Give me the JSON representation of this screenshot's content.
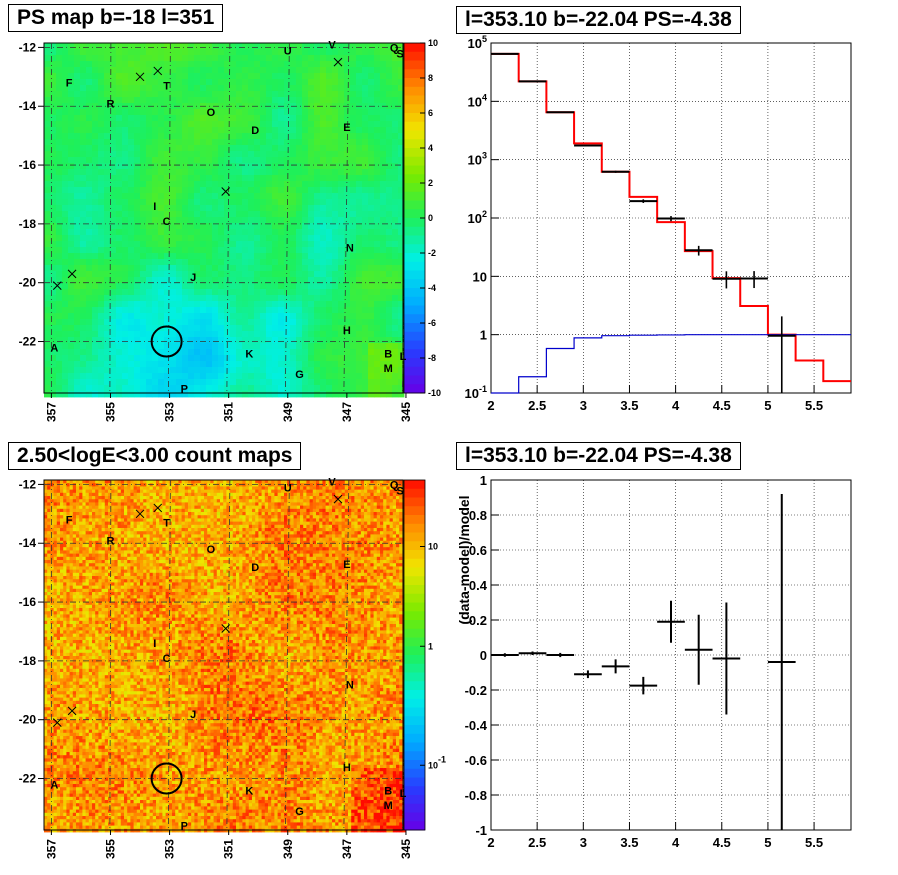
{
  "panels": {
    "tl_title": "PS map b=-18 l=351",
    "tr_title": "l=353.10 b=-22.04 PS=-4.38",
    "bl_title": "2.50<logE<3.00 count maps",
    "br_title": "l=353.10 b=-22.04 PS=-4.38"
  },
  "chart_data": [
    {
      "type": "heatmap",
      "title": "PS map b=-18 l=351",
      "x_ticks": [
        "357",
        "355",
        "353",
        "351",
        "349",
        "347",
        "345"
      ],
      "y_ticks": [
        "-12",
        "-14",
        "-16",
        "-18",
        "-20",
        "-22"
      ],
      "colorbar_ticks": [
        "10",
        "8",
        "6",
        "4",
        "2",
        "0",
        "-2",
        "-4",
        "-6",
        "-8",
        "-10"
      ],
      "colorbar_range": [
        -10,
        10
      ],
      "source_labels": [
        {
          "name": "A",
          "l": 356.9,
          "b": -22.2
        },
        {
          "name": "B",
          "l": 345.6,
          "b": -22.4
        },
        {
          "name": "C",
          "l": 353.1,
          "b": -17.9
        },
        {
          "name": "D",
          "l": 350.1,
          "b": -14.8
        },
        {
          "name": "E",
          "l": 347.0,
          "b": -14.7
        },
        {
          "name": "F",
          "l": 356.4,
          "b": -13.2
        },
        {
          "name": "G",
          "l": 348.6,
          "b": -23.1
        },
        {
          "name": "H",
          "l": 347.0,
          "b": -21.6
        },
        {
          "name": "I",
          "l": 353.5,
          "b": -17.4
        },
        {
          "name": "J",
          "l": 352.2,
          "b": -19.8
        },
        {
          "name": "K",
          "l": 350.3,
          "b": -22.4
        },
        {
          "name": "L",
          "l": 345.1,
          "b": -22.5
        },
        {
          "name": "M",
          "l": 345.6,
          "b": -22.9
        },
        {
          "name": "N",
          "l": 346.9,
          "b": -18.8
        },
        {
          "name": "O",
          "l": 351.6,
          "b": -14.2
        },
        {
          "name": "P",
          "l": 352.5,
          "b": -23.6
        },
        {
          "name": "Q",
          "l": 345.4,
          "b": -12.0
        },
        {
          "name": "R",
          "l": 355.0,
          "b": -13.9
        },
        {
          "name": "S",
          "l": 345.2,
          "b": -12.2
        },
        {
          "name": "T",
          "l": 353.1,
          "b": -13.3
        },
        {
          "name": "U",
          "l": 349.0,
          "b": -12.1
        },
        {
          "name": "V",
          "l": 347.5,
          "b": -11.9
        }
      ],
      "crosses": [
        {
          "l": 354.0,
          "b": -13.0
        },
        {
          "l": 353.4,
          "b": -12.8
        },
        {
          "l": 351.1,
          "b": -16.9
        },
        {
          "l": 347.3,
          "b": -12.5
        },
        {
          "l": 356.3,
          "b": -19.7
        },
        {
          "l": 356.8,
          "b": -20.1
        }
      ],
      "circle": {
        "l": 353.1,
        "b": -22.0
      }
    },
    {
      "type": "line",
      "title": "l=353.10 b=-22.04 PS=-4.38",
      "x_ticks": [
        "2",
        "2.5",
        "3",
        "3.5",
        "4",
        "4.5",
        "5",
        "5.5"
      ],
      "y_ticks": [
        "10^5",
        "10^4",
        "10^3",
        "10^2",
        "10",
        "1",
        "10^-1"
      ],
      "xlim": [
        2.0,
        5.9
      ],
      "ylim": [
        0.1,
        100000
      ],
      "y_scale": "log",
      "grid": true,
      "series": [
        {
          "color": "#ff0000",
          "style": "step",
          "edges": [
            2.0,
            2.3,
            2.6,
            2.9,
            3.2,
            3.5,
            3.8,
            4.1,
            4.4,
            4.7,
            5.0,
            5.3,
            5.6,
            5.9
          ],
          "values": [
            65000,
            22000,
            6500,
            1900,
            620,
            230,
            85,
            27,
            9.3,
            3.1,
            1.0,
            0.36,
            0.16
          ]
        },
        {
          "color": "#0000cc",
          "style": "step",
          "edges": [
            2.0,
            2.3,
            2.6,
            2.9,
            3.2,
            3.5,
            3.8,
            4.1,
            4.4,
            4.7,
            5.0,
            5.3,
            5.6,
            5.9
          ],
          "values": [
            0.1,
            0.19,
            0.58,
            0.88,
            0.96,
            0.98,
            0.99,
            1.0,
            1.0,
            1.0,
            1.0,
            1.0,
            1.0
          ]
        },
        {
          "color": "#000000",
          "style": "points",
          "x": [
            2.15,
            2.45,
            2.75,
            3.05,
            3.35,
            3.65,
            3.95,
            4.25,
            4.55,
            4.85,
            5.15
          ],
          "y": [
            65000,
            22000,
            6500,
            1750,
            620,
            195,
            98,
            28,
            9.1,
            9.2,
            0.96
          ],
          "x_err": [
            0.15,
            0.15,
            0.15,
            0.15,
            0.15,
            0.15,
            0.15,
            0.15,
            0.15,
            0.15,
            0.15
          ],
          "y_err_lo": [
            255,
            148,
            80,
            42,
            25,
            14,
            10,
            5.3,
            2.9,
            2.9,
            0.9
          ],
          "y_err_hi": [
            255,
            148,
            80,
            42,
            25,
            14,
            10,
            5.3,
            3.1,
            3.1,
            1.1
          ]
        }
      ]
    },
    {
      "type": "heatmap",
      "title": "2.50<logE<3.00 count maps",
      "x_ticks": [
        "357",
        "355",
        "353",
        "351",
        "349",
        "347",
        "345"
      ],
      "y_ticks": [
        "-12",
        "-14",
        "-16",
        "-18",
        "-20",
        "-22"
      ],
      "colorbar_ticks": [
        "10",
        "1",
        "10^-1"
      ],
      "colorbar_scale": "log"
    },
    {
      "type": "scatter",
      "title": "l=353.10 b=-22.04 PS=-4.38",
      "ylabel": "(data-model)/model",
      "x_ticks": [
        "2",
        "2.5",
        "3",
        "3.5",
        "4",
        "4.5",
        "5",
        "5.5"
      ],
      "y_ticks": [
        "1",
        "0.8",
        "0.6",
        "0.4",
        "0.2",
        "0",
        "-0.2",
        "-0.4",
        "-0.6",
        "-0.8",
        "-1"
      ],
      "xlim": [
        2.0,
        5.9
      ],
      "ylim": [
        -1.0,
        1.0
      ],
      "grid": true,
      "series": [
        {
          "color": "#000000",
          "x": [
            2.15,
            2.45,
            2.75,
            3.05,
            3.35,
            3.65,
            3.95,
            4.25,
            4.55,
            4.85,
            5.15
          ],
          "y": [
            0.0,
            0.01,
            0.0,
            -0.11,
            -0.065,
            -0.175,
            0.19,
            0.03,
            -0.02,
            null,
            -0.04
          ],
          "x_err": [
            0.15,
            0.15,
            0.15,
            0.15,
            0.15,
            0.15,
            0.15,
            0.15,
            0.15,
            0.15,
            0.15
          ],
          "y_err": [
            0.01,
            0.01,
            0.012,
            0.022,
            0.04,
            0.05,
            0.12,
            0.2,
            0.32,
            0,
            0.96
          ]
        }
      ]
    }
  ],
  "colors": {
    "grid": "#000000",
    "red_line": "#ff0000",
    "blue_line": "#0000cc"
  }
}
